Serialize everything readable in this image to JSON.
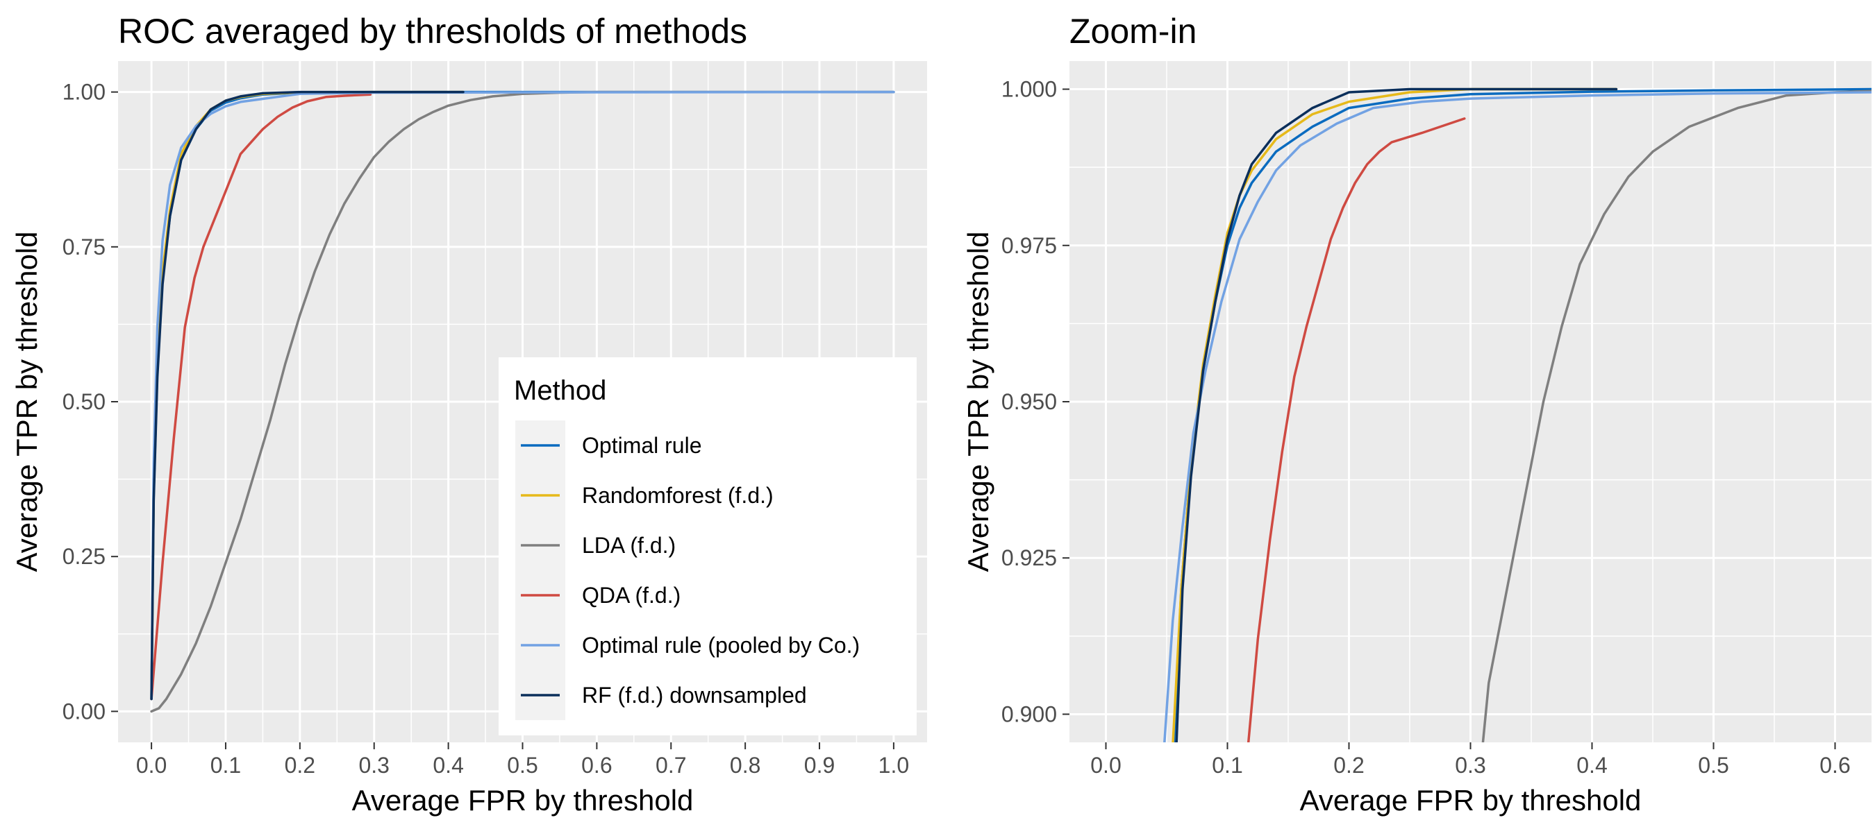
{
  "chart_data": [
    {
      "type": "line",
      "title": "ROC averaged by thresholds of methods",
      "xlabel": "Average FPR by threshold",
      "ylabel": "Average TPR by threshold",
      "xlim": [
        -0.045,
        1.045
      ],
      "ylim": [
        -0.05,
        1.05
      ],
      "x_ticks": [
        0.0,
        0.1,
        0.2,
        0.3,
        0.4,
        0.5,
        0.6,
        0.7,
        0.8,
        0.9,
        1.0
      ],
      "x_tick_labels": [
        "0.0",
        "0.1",
        "0.2",
        "0.3",
        "0.4",
        "0.5",
        "0.6",
        "0.7",
        "0.8",
        "0.9",
        "1.0"
      ],
      "y_ticks": [
        0.0,
        0.25,
        0.5,
        0.75,
        1.0
      ],
      "y_tick_labels": [
        "0.00",
        "0.25",
        "0.50",
        "0.75",
        "1.00"
      ],
      "grid": true,
      "legend": {
        "title": "Method",
        "position": "bottom-right inside",
        "entries": [
          "Optimal rule",
          "Randomforest (f.d.)",
          "LDA (f.d.)",
          "QDA (f.d.)",
          "Optimal rule (pooled by Co.)",
          "RF (f.d.) downsampled"
        ]
      },
      "series": [
        {
          "name": "Optimal rule",
          "color": "#0a6bbf",
          "x": [
            0,
            0.003,
            0.008,
            0.015,
            0.025,
            0.04,
            0.06,
            0.08,
            0.1,
            0.12,
            0.15,
            0.2,
            0.3,
            0.5,
            0.65,
            1.0
          ],
          "y": [
            0.02,
            0.35,
            0.55,
            0.7,
            0.8,
            0.89,
            0.94,
            0.97,
            0.983,
            0.99,
            0.996,
            0.999,
            1.0,
            1.0,
            1.0,
            1.0
          ]
        },
        {
          "name": "Randomforest (f.d.)",
          "color": "#e6b91a",
          "x": [
            0,
            0.003,
            0.008,
            0.015,
            0.025,
            0.04,
            0.06,
            0.08,
            0.1,
            0.12,
            0.15,
            0.2,
            0.3,
            0.42
          ],
          "y": [
            0.02,
            0.35,
            0.56,
            0.71,
            0.81,
            0.9,
            0.945,
            0.972,
            0.986,
            0.992,
            0.997,
            0.9995,
            1.0,
            1.0
          ]
        },
        {
          "name": "LDA (f.d.)",
          "color": "#7f7f7f",
          "x": [
            0,
            0.01,
            0.02,
            0.04,
            0.06,
            0.08,
            0.1,
            0.12,
            0.14,
            0.16,
            0.18,
            0.2,
            0.22,
            0.24,
            0.26,
            0.28,
            0.3,
            0.32,
            0.34,
            0.36,
            0.38,
            0.4,
            0.43,
            0.46,
            0.5,
            0.55,
            0.6,
            0.7,
            0.8,
            1.0
          ],
          "y": [
            0,
            0.005,
            0.02,
            0.06,
            0.11,
            0.17,
            0.24,
            0.31,
            0.39,
            0.47,
            0.56,
            0.64,
            0.71,
            0.77,
            0.82,
            0.86,
            0.895,
            0.92,
            0.94,
            0.956,
            0.968,
            0.978,
            0.987,
            0.993,
            0.997,
            0.999,
            1.0,
            1.0,
            1.0,
            1.0
          ]
        },
        {
          "name": "QDA (f.d.)",
          "color": "#cf4a42",
          "x": [
            0,
            0.015,
            0.03,
            0.045,
            0.058,
            0.07,
            0.08,
            0.09,
            0.1,
            0.11,
            0.12,
            0.135,
            0.15,
            0.17,
            0.19,
            0.21,
            0.235,
            0.26,
            0.295
          ],
          "y": [
            0.02,
            0.24,
            0.44,
            0.62,
            0.7,
            0.75,
            0.78,
            0.81,
            0.84,
            0.87,
            0.9,
            0.92,
            0.94,
            0.96,
            0.975,
            0.985,
            0.992,
            0.994,
            0.996
          ]
        },
        {
          "name": "Optimal rule (pooled by Co.)",
          "color": "#72a2e3",
          "x": [
            0,
            0.003,
            0.008,
            0.015,
            0.025,
            0.04,
            0.06,
            0.08,
            0.1,
            0.12,
            0.15,
            0.2,
            0.3,
            0.5,
            1.0
          ],
          "y": [
            0.02,
            0.4,
            0.62,
            0.76,
            0.85,
            0.91,
            0.945,
            0.965,
            0.977,
            0.984,
            0.989,
            0.997,
            0.999,
            0.9995,
            1.0
          ]
        },
        {
          "name": "RF (f.d.) downsampled",
          "color": "#0b2f5b",
          "x": [
            0,
            0.003,
            0.008,
            0.015,
            0.025,
            0.04,
            0.06,
            0.08,
            0.1,
            0.12,
            0.15,
            0.2,
            0.3,
            0.42
          ],
          "y": [
            0.02,
            0.34,
            0.54,
            0.69,
            0.8,
            0.89,
            0.94,
            0.972,
            0.986,
            0.993,
            0.998,
            1.0,
            1.0,
            1.0
          ]
        }
      ]
    },
    {
      "type": "line",
      "title": "Zoom-in",
      "xlabel": "Average FPR by threshold",
      "ylabel": "Average TPR by threshold",
      "xlim": [
        -0.03,
        0.63
      ],
      "ylim": [
        0.8955,
        1.0045
      ],
      "x_ticks": [
        0.0,
        0.1,
        0.2,
        0.3,
        0.4,
        0.5,
        0.6
      ],
      "x_tick_labels": [
        "0.0",
        "0.1",
        "0.2",
        "0.3",
        "0.4",
        "0.5",
        "0.6"
      ],
      "y_ticks": [
        0.9,
        0.925,
        0.95,
        0.975,
        1.0
      ],
      "y_tick_labels": [
        "0.900",
        "0.925",
        "0.950",
        "0.975",
        "1.000"
      ],
      "grid": true,
      "series": [
        {
          "name": "Optimal rule",
          "color": "#0a6bbf",
          "x": [
            0.056,
            0.062,
            0.07,
            0.08,
            0.09,
            0.1,
            0.11,
            0.12,
            0.14,
            0.17,
            0.2,
            0.25,
            0.3,
            0.4,
            0.5,
            0.63
          ],
          "y": [
            0.895,
            0.92,
            0.94,
            0.955,
            0.966,
            0.975,
            0.981,
            0.985,
            0.99,
            0.994,
            0.997,
            0.9985,
            0.9992,
            0.9996,
            0.9998,
            1.0
          ]
        },
        {
          "name": "Randomforest (f.d.)",
          "color": "#e6b91a",
          "x": [
            0.055,
            0.062,
            0.07,
            0.08,
            0.09,
            0.1,
            0.11,
            0.12,
            0.14,
            0.17,
            0.2,
            0.25,
            0.3,
            0.42
          ],
          "y": [
            0.895,
            0.92,
            0.94,
            0.956,
            0.967,
            0.977,
            0.983,
            0.987,
            0.992,
            0.996,
            0.998,
            0.9995,
            1.0,
            1.0
          ]
        },
        {
          "name": "LDA (f.d.)",
          "color": "#7f7f7f",
          "x": [
            0.31,
            0.315,
            0.33,
            0.345,
            0.36,
            0.375,
            0.39,
            0.41,
            0.43,
            0.45,
            0.48,
            0.52,
            0.56,
            0.6,
            0.63
          ],
          "y": [
            0.895,
            0.905,
            0.92,
            0.935,
            0.95,
            0.962,
            0.972,
            0.98,
            0.986,
            0.99,
            0.994,
            0.997,
            0.999,
            0.9995,
            0.9997
          ]
        },
        {
          "name": "QDA (f.d.)",
          "color": "#cf4a42",
          "x": [
            0.117,
            0.125,
            0.135,
            0.145,
            0.155,
            0.165,
            0.175,
            0.185,
            0.195,
            0.205,
            0.215,
            0.225,
            0.235,
            0.26,
            0.295
          ],
          "y": [
            0.895,
            0.912,
            0.928,
            0.942,
            0.954,
            0.962,
            0.969,
            0.976,
            0.981,
            0.985,
            0.988,
            0.99,
            0.9915,
            0.993,
            0.9953
          ]
        },
        {
          "name": "Optimal rule (pooled by Co.)",
          "color": "#72a2e3",
          "x": [
            0.048,
            0.055,
            0.063,
            0.072,
            0.082,
            0.095,
            0.11,
            0.125,
            0.14,
            0.16,
            0.19,
            0.22,
            0.26,
            0.3,
            0.4,
            0.5,
            0.63
          ],
          "y": [
            0.895,
            0.915,
            0.93,
            0.945,
            0.955,
            0.966,
            0.976,
            0.982,
            0.987,
            0.991,
            0.9945,
            0.997,
            0.998,
            0.9985,
            0.999,
            0.9993,
            0.9995
          ]
        },
        {
          "name": "RF (f.d.) downsampled",
          "color": "#0b2f5b",
          "x": [
            0.058,
            0.063,
            0.07,
            0.08,
            0.09,
            0.1,
            0.11,
            0.12,
            0.14,
            0.17,
            0.2,
            0.25,
            0.3,
            0.42
          ],
          "y": [
            0.895,
            0.92,
            0.938,
            0.955,
            0.966,
            0.976,
            0.983,
            0.988,
            0.993,
            0.997,
            0.9995,
            1.0,
            1.0,
            1.0
          ]
        }
      ]
    }
  ]
}
